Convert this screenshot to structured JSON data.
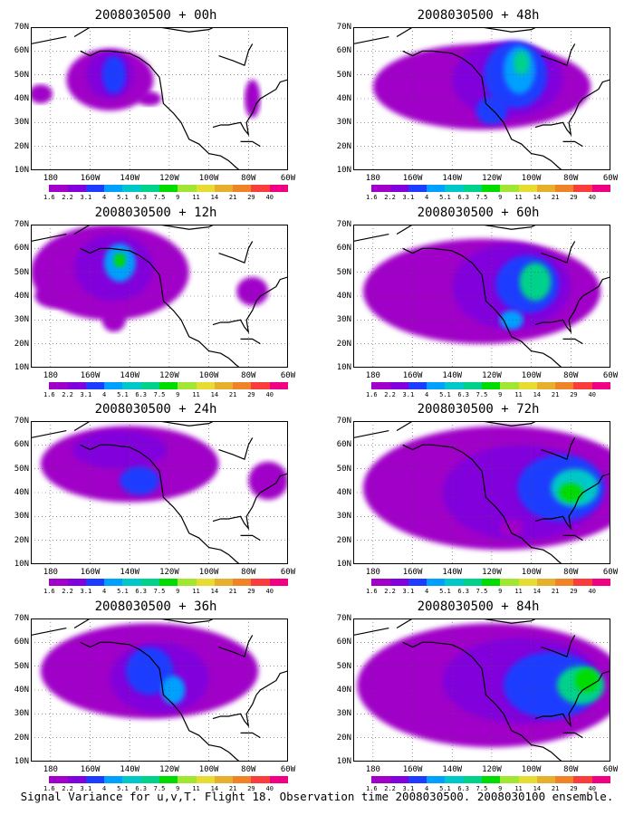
{
  "caption": "Signal Variance for u,v,T. Flight 18. Observation time 2008030500. 2008030100 ensemble.",
  "lat_ticks": [
    "70N",
    "60N",
    "50N",
    "40N",
    "30N",
    "20N",
    "10N"
  ],
  "lon_ticks": [
    "180",
    "160W",
    "140W",
    "120W",
    "100W",
    "80W",
    "60W"
  ],
  "scale": {
    "labels": [
      "1.6",
      "2.2",
      "3.1",
      "4",
      "5.1",
      "6.3",
      "7.5",
      "9",
      "11",
      "14",
      "21",
      "29",
      "40"
    ],
    "colors": [
      "#a000c8",
      "#8200dc",
      "#1e3cff",
      "#00a0ff",
      "#00c8c8",
      "#00d28c",
      "#00dc00",
      "#a0e632",
      "#e6dc32",
      "#e6af2d",
      "#f08228",
      "#fa3c3c",
      "#f00082"
    ]
  },
  "panels": [
    {
      "title": "2008030500 + 00h"
    },
    {
      "title": "2008030500 + 48h"
    },
    {
      "title": "2008030500 + 12h"
    },
    {
      "title": "2008030500 + 60h"
    },
    {
      "title": "2008030500 + 24h"
    },
    {
      "title": "2008030500 + 72h"
    },
    {
      "title": "2008030500 + 36h"
    },
    {
      "title": "2008030500 + 84h"
    }
  ]
}
